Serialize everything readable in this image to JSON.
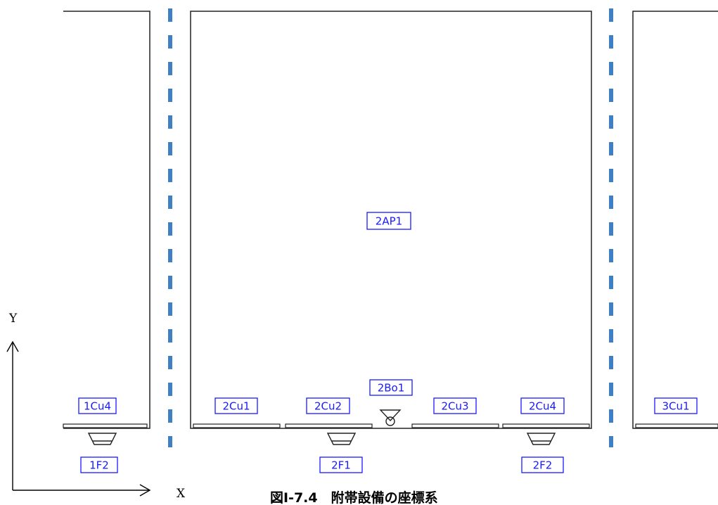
{
  "labels": {
    "room_1_cu4": "1Cu4",
    "room_1_f2": "1F2",
    "room_2_ap1": "2AP1",
    "room_2_bo1": "2Bo1",
    "room_2_cu1": "2Cu1",
    "room_2_cu2": "2Cu2",
    "room_2_cu3": "2Cu3",
    "room_2_cu4": "2Cu4",
    "room_2_f1": "2F1",
    "room_2_f2": "2F2",
    "room_3_cu1": "3Cu1"
  },
  "axes": {
    "x": "X",
    "y": "Y"
  },
  "caption": "図Ⅰ-7.4　附帯設備の座標系",
  "colors": {
    "tag": "#1a1aff",
    "divider": "#3f7fc4",
    "outline": "#222222"
  }
}
